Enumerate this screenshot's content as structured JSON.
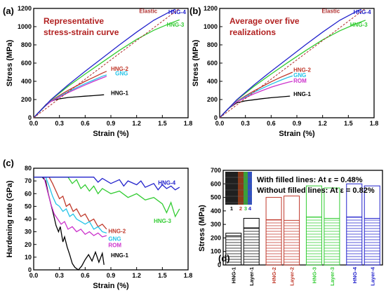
{
  "colors": {
    "HNG-1": "#000000",
    "HNG-2": "#c0392b",
    "GNG": "#22c3e8",
    "ROM": "#cc33cc",
    "HNG-3": "#33cc33",
    "HNG-4": "#2222cc",
    "Elastic": "#b03030",
    "title": "#b22222"
  },
  "chart_data": [
    {
      "panel": "(a)",
      "type": "line",
      "title": "Representative stress-strain curve",
      "xlabel": "Strain (%)",
      "ylabel": "Stress (MPa)",
      "xlim": [
        0.0,
        1.8
      ],
      "ylim": [
        0,
        1200
      ],
      "xticks": [
        "0.0",
        "0.3",
        "0.6",
        "0.9",
        "1.2",
        "1.5",
        "1.8"
      ],
      "yticks": [
        "0",
        "200",
        "400",
        "600",
        "800",
        "1000",
        "1200"
      ],
      "series": [
        {
          "name": "HNG-1",
          "x": [
            0,
            0.05,
            0.1,
            0.15,
            0.2,
            0.25,
            0.3,
            0.4,
            0.5,
            0.6,
            0.7,
            0.82
          ],
          "y": [
            0,
            50,
            100,
            150,
            180,
            198,
            208,
            222,
            230,
            237,
            243,
            252
          ]
        },
        {
          "name": "HNG-2",
          "x": [
            0,
            0.1,
            0.2,
            0.3,
            0.4,
            0.5,
            0.6,
            0.7,
            0.8,
            0.85
          ],
          "y": [
            0,
            100,
            185,
            245,
            300,
            350,
            400,
            445,
            490,
            510
          ]
        },
        {
          "name": "GNG",
          "x": [
            0,
            0.1,
            0.2,
            0.3,
            0.4,
            0.5,
            0.6,
            0.7,
            0.8,
            0.85
          ],
          "y": [
            0,
            100,
            180,
            235,
            285,
            330,
            375,
            415,
            455,
            470
          ]
        },
        {
          "name": "ROM",
          "x": [
            0,
            0.1,
            0.2,
            0.3,
            0.4,
            0.5,
            0.6,
            0.7,
            0.8,
            0.85
          ],
          "y": [
            0,
            100,
            178,
            228,
            275,
            318,
            360,
            400,
            438,
            455
          ]
        },
        {
          "name": "HNG-3",
          "x": [
            0,
            0.2,
            0.4,
            0.6,
            0.8,
            1.0,
            1.2,
            1.4,
            1.6,
            1.7
          ],
          "y": [
            0,
            195,
            345,
            480,
            610,
            740,
            860,
            960,
            1040,
            1075
          ]
        },
        {
          "name": "HNG-4",
          "x": [
            0,
            0.2,
            0.4,
            0.6,
            0.8,
            1.0,
            1.2,
            1.4,
            1.6,
            1.65
          ],
          "y": [
            0,
            198,
            360,
            510,
            655,
            800,
            940,
            1070,
            1170,
            1190
          ]
        },
        {
          "name": "Elastic",
          "x": [
            0,
            1.7
          ],
          "y": [
            0,
            1200
          ]
        }
      ]
    },
    {
      "panel": "(b)",
      "type": "line",
      "title": "Average over five realizations",
      "xlabel": "Strain (%)",
      "ylabel": "Stress (MPa)",
      "xlim": [
        0.0,
        1.8
      ],
      "ylim": [
        0,
        1200
      ],
      "xticks": [
        "0.0",
        "0.3",
        "0.6",
        "0.9",
        "1.2",
        "1.5",
        "1.8"
      ],
      "yticks": [
        "0",
        "200",
        "400",
        "600",
        "800",
        "1000",
        "1200"
      ],
      "series": [
        {
          "name": "HNG-1",
          "x": [
            0,
            0.1,
            0.2,
            0.3,
            0.4,
            0.5,
            0.6,
            0.7,
            0.82
          ],
          "y": [
            0,
            100,
            165,
            185,
            198,
            210,
            220,
            228,
            238
          ]
        },
        {
          "name": "HNG-2",
          "x": [
            0,
            0.1,
            0.2,
            0.3,
            0.4,
            0.5,
            0.6,
            0.7,
            0.8,
            0.85
          ],
          "y": [
            0,
            100,
            180,
            240,
            295,
            345,
            395,
            440,
            480,
            500
          ]
        },
        {
          "name": "GNG",
          "x": [
            0,
            0.1,
            0.2,
            0.3,
            0.4,
            0.5,
            0.6,
            0.7,
            0.8,
            0.85
          ],
          "y": [
            0,
            100,
            177,
            230,
            280,
            325,
            368,
            408,
            445,
            460
          ]
        },
        {
          "name": "ROM",
          "x": [
            0,
            0.1,
            0.2,
            0.3,
            0.4,
            0.5,
            0.6,
            0.7,
            0.8,
            0.85
          ],
          "y": [
            0,
            100,
            175,
            220,
            262,
            300,
            335,
            365,
            390,
            400
          ]
        },
        {
          "name": "HNG-3",
          "x": [
            0,
            0.2,
            0.4,
            0.6,
            0.8,
            1.0,
            1.2,
            1.4,
            1.6,
            1.7
          ],
          "y": [
            0,
            195,
            345,
            480,
            610,
            735,
            855,
            955,
            1035,
            1070
          ]
        },
        {
          "name": "HNG-4",
          "x": [
            0,
            0.2,
            0.4,
            0.6,
            0.8,
            1.0,
            1.2,
            1.4,
            1.6,
            1.65
          ],
          "y": [
            0,
            198,
            360,
            510,
            655,
            800,
            940,
            1070,
            1170,
            1190
          ]
        },
        {
          "name": "Elastic",
          "x": [
            0,
            1.7
          ],
          "y": [
            0,
            1200
          ]
        }
      ]
    },
    {
      "panel": "(c)",
      "type": "line",
      "title": "",
      "xlabel": "Strain (%)",
      "ylabel": "Hardening rate (GPa)",
      "xlim": [
        0.0,
        1.8
      ],
      "ylim": [
        0,
        80
      ],
      "xticks": [
        "0.0",
        "0.3",
        "0.6",
        "0.9",
        "1.2",
        "1.5",
        "1.8"
      ],
      "yticks": [
        "0",
        "10",
        "20",
        "30",
        "40",
        "50",
        "60",
        "70",
        "80"
      ],
      "series": [
        {
          "name": "HNG-1",
          "x": [
            0,
            0.1,
            0.14,
            0.17,
            0.2,
            0.23,
            0.26,
            0.29,
            0.31,
            0.34,
            0.36,
            0.39,
            0.42,
            0.45,
            0.48,
            0.52,
            0.56,
            0.6,
            0.64,
            0.68,
            0.72,
            0.76,
            0.8,
            0.82
          ],
          "y": [
            73,
            73,
            70,
            60,
            52,
            44,
            35,
            30,
            34,
            22,
            26,
            18,
            12,
            5,
            2,
            0,
            3,
            8,
            12,
            7,
            14,
            6,
            13,
            4
          ]
        },
        {
          "name": "HNG-2",
          "x": [
            0,
            0.18,
            0.22,
            0.26,
            0.3,
            0.34,
            0.38,
            0.42,
            0.46,
            0.5,
            0.55,
            0.6,
            0.65,
            0.7,
            0.75,
            0.8,
            0.85
          ],
          "y": [
            73,
            73,
            68,
            62,
            56,
            58,
            50,
            52,
            46,
            48,
            42,
            44,
            38,
            40,
            34,
            36,
            32
          ]
        },
        {
          "name": "GNG",
          "x": [
            0,
            0.14,
            0.18,
            0.22,
            0.26,
            0.3,
            0.34,
            0.38,
            0.42,
            0.46,
            0.5,
            0.55,
            0.6,
            0.65,
            0.7,
            0.75,
            0.8,
            0.85
          ],
          "y": [
            73,
            73,
            66,
            58,
            52,
            50,
            46,
            48,
            42,
            44,
            40,
            38,
            36,
            38,
            32,
            34,
            30,
            29
          ]
        },
        {
          "name": "ROM",
          "x": [
            0,
            0.12,
            0.16,
            0.2,
            0.24,
            0.28,
            0.32,
            0.36,
            0.4,
            0.45,
            0.5,
            0.55,
            0.6,
            0.65,
            0.7,
            0.75,
            0.8,
            0.85
          ],
          "y": [
            73,
            73,
            62,
            52,
            44,
            40,
            36,
            38,
            32,
            34,
            30,
            32,
            28,
            30,
            27,
            29,
            26,
            27
          ]
        },
        {
          "name": "HNG-3",
          "x": [
            0,
            0.4,
            0.45,
            0.5,
            0.55,
            0.6,
            0.65,
            0.7,
            0.75,
            0.8,
            0.9,
            1.0,
            1.1,
            1.2,
            1.3,
            1.4,
            1.5,
            1.55,
            1.6,
            1.65,
            1.7
          ],
          "y": [
            73,
            73,
            68,
            71,
            64,
            67,
            62,
            66,
            60,
            64,
            60,
            62,
            57,
            60,
            55,
            57,
            52,
            45,
            53,
            42,
            48
          ]
        },
        {
          "name": "HNG-4",
          "x": [
            0,
            0.7,
            0.75,
            0.8,
            0.9,
            1.0,
            1.05,
            1.1,
            1.2,
            1.25,
            1.3,
            1.4,
            1.45,
            1.5,
            1.55,
            1.6,
            1.65,
            1.7
          ],
          "y": [
            73,
            73,
            69,
            72,
            68,
            71,
            66,
            70,
            67,
            70,
            65,
            68,
            63,
            67,
            64,
            66,
            63,
            65
          ]
        }
      ]
    },
    {
      "panel": "(d)",
      "type": "bar",
      "title": "",
      "ylabel": "Stress (MPa)",
      "ylim": [
        0,
        700
      ],
      "yticks": [
        "0",
        "100",
        "200",
        "300",
        "400",
        "500",
        "600",
        "700"
      ],
      "annotations": [
        "With filled lines: At ε = 0.48%",
        "Without filled lines: At ε = 0.82%"
      ],
      "inset_labels": [
        "1",
        "2",
        "3",
        "4"
      ],
      "categories": [
        "HNG-1",
        "Layer-1",
        "HNG-2",
        "Layer-2",
        "HNG-3",
        "Layer-3",
        "HNG-4",
        "Layer-4"
      ],
      "series": [
        {
          "name": "At ε = 0.48%",
          "values": [
            215,
            275,
            335,
            330,
            355,
            345,
            355,
            345
          ]
        },
        {
          "name": "At ε = 0.82%",
          "values": [
            235,
            345,
            500,
            510,
            585,
            570,
            600,
            585
          ]
        }
      ]
    }
  ]
}
